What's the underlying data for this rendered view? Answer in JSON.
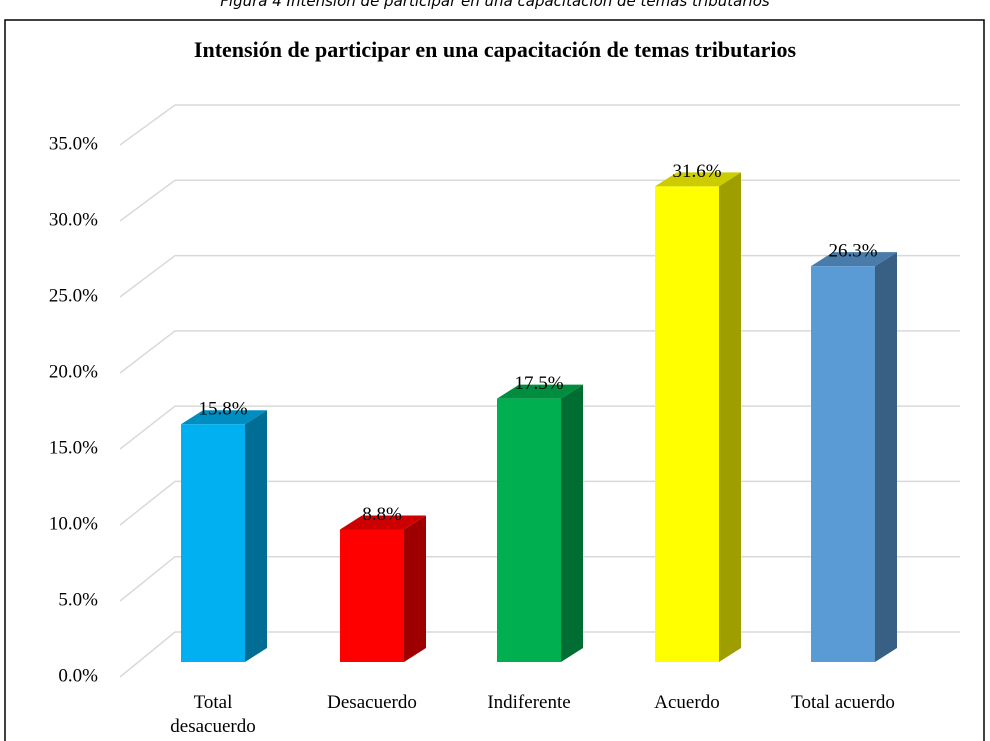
{
  "caption": "Figura 4 Intensión de participar en una capacitación de temas tributarios",
  "chart_data": {
    "type": "bar3d",
    "title": "Intensión de participar en una capacitación de temas tributarios",
    "categories": [
      "Total desacuerdo",
      "Desacuerdo",
      "Indiferente",
      "Acuerdo",
      "Total acuerdo"
    ],
    "values": [
      15.8,
      8.8,
      17.5,
      31.6,
      26.3
    ],
    "value_labels": [
      "15.8%",
      "8.8%",
      "17.5%",
      "31.6%",
      "26.3%"
    ],
    "colors": [
      "#00b0f0",
      "#ff0000",
      "#00b050",
      "#ffff00",
      "#5b9bd5"
    ],
    "ylim": [
      0,
      35
    ],
    "yticks": [
      {
        "value": 0,
        "label": "0.0%"
      },
      {
        "value": 5,
        "label": "5.0%"
      },
      {
        "value": 10,
        "label": "10.0%"
      },
      {
        "value": 15,
        "label": "15.0%"
      },
      {
        "value": 20,
        "label": "20.0%"
      },
      {
        "value": 25,
        "label": "25.0%"
      },
      {
        "value": 30,
        "label": "30.0%"
      },
      {
        "value": 35,
        "label": "35.0%"
      }
    ],
    "grid": true
  }
}
